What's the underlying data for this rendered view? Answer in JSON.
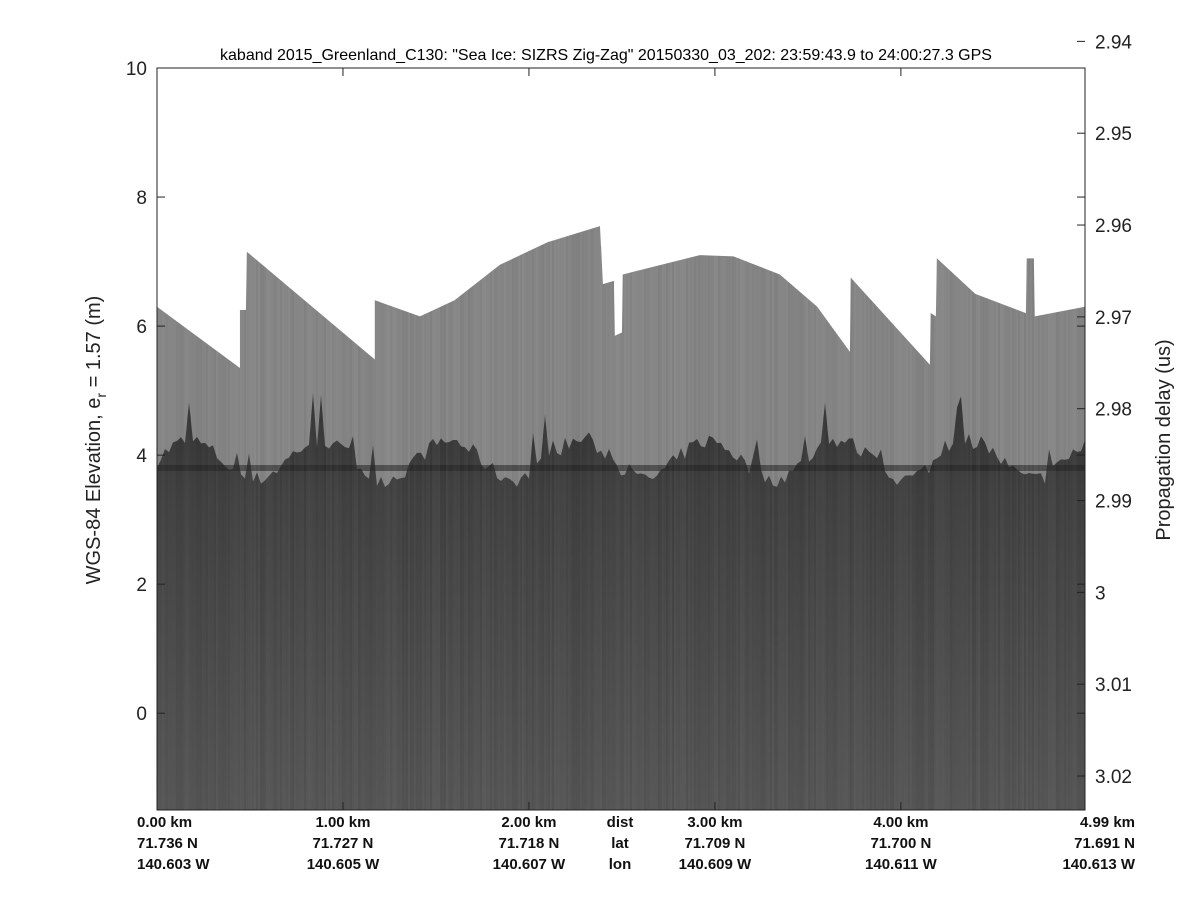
{
  "chart_data": {
    "type": "heatmap",
    "title": "kaband 2015_Greenland_C130: \"Sea Ice: SIZRS Zig-Zag\"  20150330_03_202: 23:59:43.9 to 24:00:27.3 GPS",
    "ylabel_left": "WGS-84 Elevation, e",
    "ylabel_left_sub": "r",
    "ylabel_left_suffix": " = 1.57 (m)",
    "ylabel_right": "Propagation delay (us)",
    "ylim_left": [
      -1.5,
      10
    ],
    "yticks_left": [
      "0",
      "2",
      "4",
      "6",
      "8",
      "10"
    ],
    "ylim_right": [
      2.9429,
      3.0237
    ],
    "yticks_right": [
      "2.94",
      "2.95",
      "2.96",
      "2.97",
      "2.98",
      "2.99",
      "3",
      "3.01",
      "3.02"
    ],
    "xlim_km": [
      0,
      4.99
    ],
    "x_ticks": [
      {
        "km": 0,
        "dist": "0.00 km",
        "lat": "71.736 N",
        "lon": "140.603 W"
      },
      {
        "km": 1,
        "dist": "1.00 km",
        "lat": "71.727 N",
        "lon": "140.605 W"
      },
      {
        "km": 2,
        "dist": "2.00 km",
        "lat": "71.718 N",
        "lon": "140.607 W"
      },
      {
        "km": 3,
        "dist": "3.00 km",
        "lat": "71.709 N",
        "lon": "140.609 W"
      },
      {
        "km": 4,
        "dist": "4.00 km",
        "lat": "71.700 N",
        "lon": "140.611 W"
      },
      {
        "km": 4.99,
        "dist": "4.99 km",
        "lat": "71.691 N",
        "lon": "140.613 W"
      }
    ],
    "x_row_labels": {
      "dist": "dist",
      "lat": "lat",
      "lon": "lon"
    },
    "colormap": "gray",
    "surface_elevation_m": [
      [
        0,
        6.3
      ],
      [
        0.446,
        5.35
      ],
      [
        0.446,
        6.25
      ],
      [
        0.478,
        6.25
      ],
      [
        0.484,
        7.15
      ],
      [
        1.172,
        5.48
      ],
      [
        1.172,
        6.4
      ],
      [
        1.414,
        6.15
      ],
      [
        1.6,
        6.4
      ],
      [
        1.844,
        6.95
      ],
      [
        2.1,
        7.3
      ],
      [
        2.382,
        7.55
      ],
      [
        2.398,
        6.65
      ],
      [
        2.457,
        6.7
      ],
      [
        2.462,
        5.85
      ],
      [
        2.5,
        5.9
      ],
      [
        2.505,
        6.8
      ],
      [
        2.919,
        7.1
      ],
      [
        3.1,
        7.08
      ],
      [
        3.349,
        6.8
      ],
      [
        3.55,
        6.3
      ],
      [
        3.726,
        5.6
      ],
      [
        3.731,
        6.75
      ],
      [
        4.156,
        5.4
      ],
      [
        4.161,
        6.2
      ],
      [
        4.188,
        6.15
      ],
      [
        4.194,
        7.05
      ],
      [
        4.4,
        6.5
      ],
      [
        4.672,
        6.2
      ],
      [
        4.677,
        7.05
      ],
      [
        4.715,
        7.05
      ],
      [
        4.72,
        6.15
      ],
      [
        4.99,
        6.3
      ]
    ],
    "bright_layer_elevation_m": 3.8
  }
}
